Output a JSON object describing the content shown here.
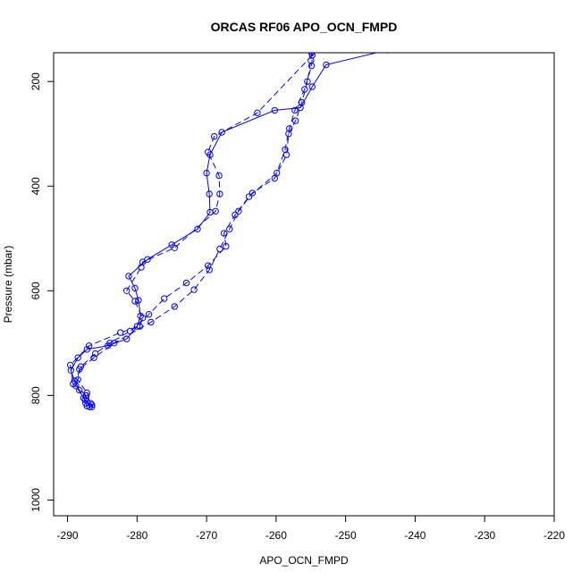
{
  "chart_data": {
    "type": "line",
    "title": "ORCAS RF06 APO_OCN_FMPD",
    "xlabel": "APO_OCN_FMPD",
    "ylabel": "Pressure (mbar)",
    "xlim": [
      -292,
      -220
    ],
    "ylim": [
      1030,
      145
    ],
    "y_reversed": true,
    "x_ticks": [
      -290,
      -280,
      -270,
      -260,
      -250,
      -240,
      -230,
      -220
    ],
    "y_ticks": [
      200,
      400,
      600,
      800,
      1000
    ],
    "grid": false,
    "color": "#0000ff",
    "marker": "open-circle",
    "series": [
      {
        "line_style": "solid",
        "points": [
          [
            -244,
            140
          ],
          [
            -252.8,
            168
          ],
          [
            -254.8,
            210
          ],
          [
            -256.5,
            250
          ],
          [
            -260.2,
            255
          ],
          [
            -267.8,
            297
          ],
          [
            -269.5,
            340
          ],
          [
            -270,
            375
          ],
          [
            -269.6,
            415
          ],
          [
            -269.5,
            450
          ],
          [
            -271.3,
            482
          ],
          [
            -275,
            512
          ],
          [
            -278.5,
            540
          ],
          [
            -281.2,
            572
          ],
          [
            -280.3,
            595
          ],
          [
            -279.8,
            618
          ],
          [
            -279.5,
            648
          ],
          [
            -280,
            668
          ],
          [
            -281.5,
            692
          ],
          [
            -284.2,
            705
          ],
          [
            -287.2,
            712
          ],
          [
            -288.5,
            728
          ],
          [
            -289.5,
            752
          ],
          [
            -289,
            772
          ],
          [
            -288.3,
            790
          ],
          [
            -287.7,
            805
          ],
          [
            -287.4,
            815
          ],
          [
            -287.2,
            820
          ]
        ]
      },
      {
        "line_style": "dashed",
        "points": [
          [
            -254.9,
            145
          ],
          [
            -255,
            160
          ],
          [
            -255.5,
            200
          ],
          [
            -256.3,
            240
          ],
          [
            -257.2,
            275
          ],
          [
            -258.2,
            300
          ],
          [
            -258.5,
            340
          ],
          [
            -260.2,
            385
          ],
          [
            -263.4,
            413
          ],
          [
            -265.4,
            448
          ],
          [
            -266.7,
            482
          ],
          [
            -268.1,
            520
          ],
          [
            -269.6,
            560
          ],
          [
            -271.8,
            598
          ],
          [
            -274.6,
            630
          ],
          [
            -278,
            660
          ],
          [
            -283.3,
            700
          ],
          [
            -286.2,
            728
          ],
          [
            -288.3,
            750
          ],
          [
            -288.8,
            782
          ],
          [
            -287.5,
            808
          ],
          [
            -286.8,
            822
          ]
        ]
      },
      {
        "line_style": "dashed",
        "points": [
          [
            -254.7,
            140
          ],
          [
            -254.9,
            170
          ],
          [
            -255.9,
            215
          ],
          [
            -257.3,
            255
          ],
          [
            -258.1,
            290
          ],
          [
            -258.7,
            330
          ],
          [
            -259.9,
            375
          ],
          [
            -263.9,
            420
          ],
          [
            -265.9,
            455
          ],
          [
            -267.5,
            490
          ],
          [
            -267.2,
            515
          ],
          [
            -269.8,
            552
          ],
          [
            -272.9,
            585
          ],
          [
            -276.1,
            615
          ],
          [
            -278.3,
            645
          ],
          [
            -281,
            677
          ],
          [
            -283.9,
            700
          ],
          [
            -286,
            720
          ],
          [
            -288.1,
            745
          ],
          [
            -288.5,
            770
          ],
          [
            -287.2,
            795
          ],
          [
            -286.7,
            815
          ],
          [
            -286.5,
            822
          ]
        ]
      },
      {
        "line_style": "dashed",
        "points": [
          [
            -254.8,
            150
          ],
          [
            -262.7,
            260
          ],
          [
            -268.9,
            305
          ],
          [
            -269.8,
            335
          ],
          [
            -268.2,
            380
          ],
          [
            -268.1,
            415
          ],
          [
            -268.7,
            448
          ],
          [
            -274.6,
            518
          ],
          [
            -279.2,
            545
          ],
          [
            -279.4,
            555
          ],
          [
            -281.5,
            600
          ],
          [
            -280.3,
            620
          ],
          [
            -279.2,
            652
          ],
          [
            -279.6,
            668
          ],
          [
            -282.4,
            680
          ],
          [
            -286.9,
            705
          ],
          [
            -289.6,
            742
          ],
          [
            -289.2,
            778
          ],
          [
            -287.3,
            800
          ],
          [
            -286.5,
            818
          ]
        ]
      }
    ]
  }
}
